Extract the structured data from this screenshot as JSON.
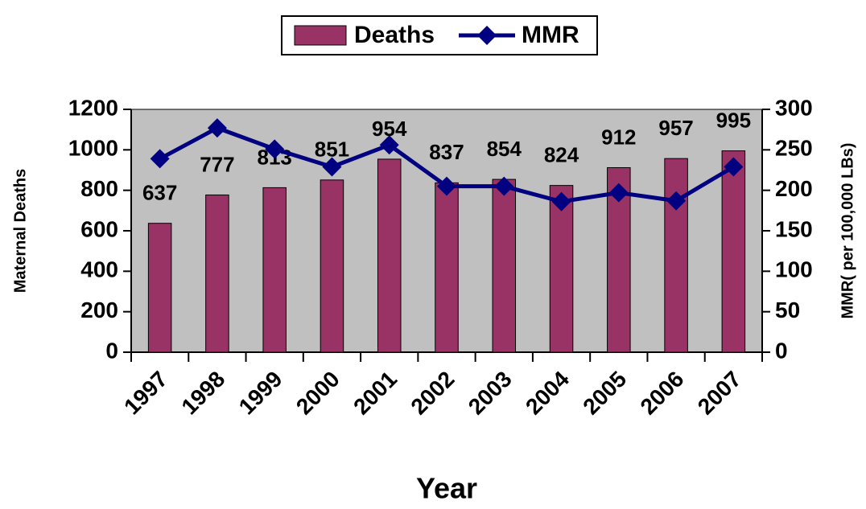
{
  "chart_data": {
    "type": "bar",
    "categories": [
      "1997",
      "1998",
      "1999",
      "2000",
      "2001",
      "2002",
      "2003",
      "2004",
      "2005",
      "2006",
      "2007"
    ],
    "series": [
      {
        "name": "Deaths",
        "type": "bar",
        "color": "#993366",
        "values": [
          637,
          777,
          813,
          851,
          954,
          837,
          854,
          824,
          912,
          957,
          995
        ]
      },
      {
        "name": "MMR",
        "type": "line",
        "axis": "y2",
        "color": "#000080",
        "values": [
          239,
          277,
          251,
          229,
          256,
          205,
          205,
          186,
          197,
          187,
          229
        ]
      }
    ],
    "ylim": [
      0,
      1200
    ],
    "yticks": [
      0,
      200,
      400,
      600,
      800,
      1000,
      1200
    ],
    "y2lim": [
      0,
      300
    ],
    "y2ticks": [
      0,
      50,
      100,
      150,
      200,
      250,
      300
    ],
    "y_label": "Maternal Deaths",
    "y2_label": "MMR( per 100,000 LBs)",
    "x_label": "Year",
    "plot_background": "#c0c0c0",
    "legend": "top"
  }
}
